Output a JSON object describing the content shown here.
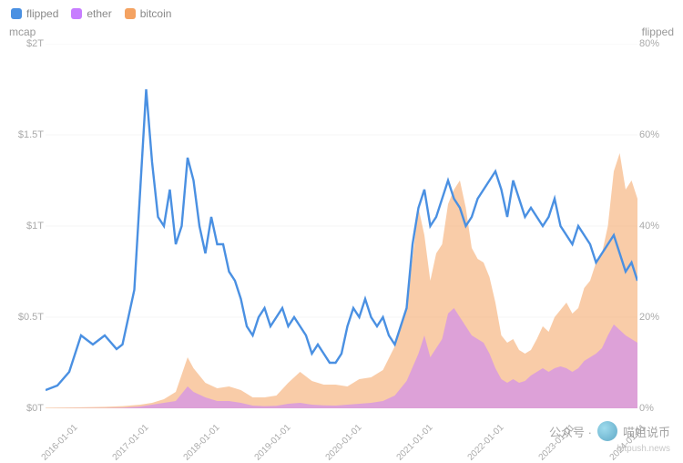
{
  "legend": {
    "items": [
      {
        "key": "flipped",
        "label": "flipped",
        "color": "#4a90e2"
      },
      {
        "key": "ether",
        "label": "ether",
        "color": "#c77dff"
      },
      {
        "key": "bitcoin",
        "label": "bitcoin",
        "color": "#f4a261"
      }
    ]
  },
  "chart": {
    "type": "dual-axis-line-area",
    "background_color": "#ffffff",
    "grid_color": "#eeeeee",
    "text_color": "#999999",
    "fontsize_ticks": 11,
    "fontsize_axis_title": 12,
    "y_left": {
      "title": "mcap",
      "lim": [
        0,
        2
      ],
      "ticks": [
        {
          "v": 0,
          "label": "$0T"
        },
        {
          "v": 0.5,
          "label": "$0.5T"
        },
        {
          "v": 1,
          "label": "$1T"
        },
        {
          "v": 1.5,
          "label": "$1.5T"
        },
        {
          "v": 2,
          "label": "$2T"
        }
      ]
    },
    "y_right": {
      "title": "flipped",
      "lim": [
        0,
        80
      ],
      "ticks": [
        {
          "v": 0,
          "label": "0%"
        },
        {
          "v": 20,
          "label": "20%"
        },
        {
          "v": 40,
          "label": "40%"
        },
        {
          "v": 60,
          "label": "60%"
        },
        {
          "v": 80,
          "label": "80%"
        }
      ]
    },
    "x": {
      "lim": [
        0,
        100
      ],
      "ticks": [
        {
          "v": 1,
          "label": "2016-01-01"
        },
        {
          "v": 13,
          "label": "2017-01-01"
        },
        {
          "v": 25,
          "label": "2018-01-01"
        },
        {
          "v": 37,
          "label": "2019-01-01"
        },
        {
          "v": 49,
          "label": "2020-01-01"
        },
        {
          "v": 61,
          "label": "2021-01-01"
        },
        {
          "v": 73,
          "label": "2022-01-01"
        },
        {
          "v": 85,
          "label": "2023-01-01"
        },
        {
          "v": 97,
          "label": "2024-01-01"
        }
      ]
    },
    "series": {
      "bitcoin_mcap": {
        "axis": "left",
        "color": "#f4a261",
        "fill_opacity": 0.55,
        "points": [
          [
            0,
            0.003
          ],
          [
            5,
            0.005
          ],
          [
            10,
            0.008
          ],
          [
            13,
            0.012
          ],
          [
            16,
            0.02
          ],
          [
            18,
            0.03
          ],
          [
            20,
            0.05
          ],
          [
            22,
            0.09
          ],
          [
            24,
            0.28
          ],
          [
            25,
            0.22
          ],
          [
            27,
            0.14
          ],
          [
            29,
            0.11
          ],
          [
            31,
            0.12
          ],
          [
            33,
            0.1
          ],
          [
            35,
            0.06
          ],
          [
            37,
            0.06
          ],
          [
            39,
            0.07
          ],
          [
            41,
            0.14
          ],
          [
            43,
            0.2
          ],
          [
            45,
            0.15
          ],
          [
            47,
            0.13
          ],
          [
            49,
            0.13
          ],
          [
            51,
            0.12
          ],
          [
            53,
            0.16
          ],
          [
            55,
            0.17
          ],
          [
            57,
            0.21
          ],
          [
            59,
            0.34
          ],
          [
            61,
            0.55
          ],
          [
            63,
            1.1
          ],
          [
            64,
            0.95
          ],
          [
            65,
            0.7
          ],
          [
            66,
            0.85
          ],
          [
            67,
            0.9
          ],
          [
            68,
            1.12
          ],
          [
            69,
            1.2
          ],
          [
            70,
            1.25
          ],
          [
            71,
            1.1
          ],
          [
            72,
            0.88
          ],
          [
            73,
            0.82
          ],
          [
            74,
            0.8
          ],
          [
            75,
            0.72
          ],
          [
            76,
            0.58
          ],
          [
            77,
            0.4
          ],
          [
            78,
            0.36
          ],
          [
            79,
            0.38
          ],
          [
            80,
            0.32
          ],
          [
            81,
            0.3
          ],
          [
            82,
            0.32
          ],
          [
            83,
            0.38
          ],
          [
            84,
            0.45
          ],
          [
            85,
            0.42
          ],
          [
            86,
            0.5
          ],
          [
            87,
            0.54
          ],
          [
            88,
            0.58
          ],
          [
            89,
            0.52
          ],
          [
            90,
            0.55
          ],
          [
            91,
            0.66
          ],
          [
            92,
            0.7
          ],
          [
            93,
            0.8
          ],
          [
            94,
            0.85
          ],
          [
            95,
            1.0
          ],
          [
            96,
            1.3
          ],
          [
            97,
            1.4
          ],
          [
            98,
            1.2
          ],
          [
            99,
            1.25
          ],
          [
            100,
            1.15
          ]
        ]
      },
      "ether_mcap": {
        "axis": "left",
        "color": "#c77dff",
        "fill_opacity": 0.55,
        "points": [
          [
            0,
            0.0
          ],
          [
            10,
            0.001
          ],
          [
            13,
            0.003
          ],
          [
            16,
            0.01
          ],
          [
            18,
            0.02
          ],
          [
            20,
            0.03
          ],
          [
            22,
            0.04
          ],
          [
            24,
            0.12
          ],
          [
            25,
            0.09
          ],
          [
            27,
            0.06
          ],
          [
            29,
            0.04
          ],
          [
            31,
            0.04
          ],
          [
            33,
            0.03
          ],
          [
            35,
            0.015
          ],
          [
            37,
            0.012
          ],
          [
            39,
            0.014
          ],
          [
            41,
            0.025
          ],
          [
            43,
            0.03
          ],
          [
            45,
            0.02
          ],
          [
            47,
            0.016
          ],
          [
            49,
            0.015
          ],
          [
            51,
            0.02
          ],
          [
            53,
            0.025
          ],
          [
            55,
            0.03
          ],
          [
            57,
            0.04
          ],
          [
            59,
            0.07
          ],
          [
            61,
            0.15
          ],
          [
            63,
            0.3
          ],
          [
            64,
            0.4
          ],
          [
            65,
            0.28
          ],
          [
            66,
            0.33
          ],
          [
            67,
            0.38
          ],
          [
            68,
            0.52
          ],
          [
            69,
            0.55
          ],
          [
            70,
            0.5
          ],
          [
            71,
            0.45
          ],
          [
            72,
            0.4
          ],
          [
            73,
            0.38
          ],
          [
            74,
            0.36
          ],
          [
            75,
            0.3
          ],
          [
            76,
            0.22
          ],
          [
            77,
            0.16
          ],
          [
            78,
            0.14
          ],
          [
            79,
            0.16
          ],
          [
            80,
            0.14
          ],
          [
            81,
            0.15
          ],
          [
            82,
            0.18
          ],
          [
            83,
            0.2
          ],
          [
            84,
            0.22
          ],
          [
            85,
            0.2
          ],
          [
            86,
            0.22
          ],
          [
            87,
            0.23
          ],
          [
            88,
            0.22
          ],
          [
            89,
            0.2
          ],
          [
            90,
            0.22
          ],
          [
            91,
            0.26
          ],
          [
            92,
            0.28
          ],
          [
            93,
            0.3
          ],
          [
            94,
            0.33
          ],
          [
            95,
            0.4
          ],
          [
            96,
            0.46
          ],
          [
            97,
            0.43
          ],
          [
            98,
            0.4
          ],
          [
            99,
            0.38
          ],
          [
            100,
            0.36
          ]
        ]
      },
      "flipped_pct": {
        "axis": "right",
        "color": "#4a90e2",
        "line_width": 2.4,
        "points": [
          [
            0,
            4
          ],
          [
            2,
            5
          ],
          [
            4,
            8
          ],
          [
            6,
            16
          ],
          [
            8,
            14
          ],
          [
            10,
            16
          ],
          [
            12,
            13
          ],
          [
            13,
            14
          ],
          [
            14,
            20
          ],
          [
            15,
            26
          ],
          [
            16,
            48
          ],
          [
            17,
            70
          ],
          [
            18,
            54
          ],
          [
            19,
            42
          ],
          [
            20,
            40
          ],
          [
            21,
            48
          ],
          [
            22,
            36
          ],
          [
            23,
            40
          ],
          [
            24,
            55
          ],
          [
            25,
            50
          ],
          [
            26,
            40
          ],
          [
            27,
            34
          ],
          [
            28,
            42
          ],
          [
            29,
            36
          ],
          [
            30,
            36
          ],
          [
            31,
            30
          ],
          [
            32,
            28
          ],
          [
            33,
            24
          ],
          [
            34,
            18
          ],
          [
            35,
            16
          ],
          [
            36,
            20
          ],
          [
            37,
            22
          ],
          [
            38,
            18
          ],
          [
            39,
            20
          ],
          [
            40,
            22
          ],
          [
            41,
            18
          ],
          [
            42,
            20
          ],
          [
            43,
            18
          ],
          [
            44,
            16
          ],
          [
            45,
            12
          ],
          [
            46,
            14
          ],
          [
            47,
            12
          ],
          [
            48,
            10
          ],
          [
            49,
            10
          ],
          [
            50,
            12
          ],
          [
            51,
            18
          ],
          [
            52,
            22
          ],
          [
            53,
            20
          ],
          [
            54,
            24
          ],
          [
            55,
            20
          ],
          [
            56,
            18
          ],
          [
            57,
            20
          ],
          [
            58,
            16
          ],
          [
            59,
            14
          ],
          [
            60,
            18
          ],
          [
            61,
            22
          ],
          [
            62,
            36
          ],
          [
            63,
            44
          ],
          [
            64,
            48
          ],
          [
            65,
            40
          ],
          [
            66,
            42
          ],
          [
            67,
            46
          ],
          [
            68,
            50
          ],
          [
            69,
            46
          ],
          [
            70,
            44
          ],
          [
            71,
            40
          ],
          [
            72,
            42
          ],
          [
            73,
            46
          ],
          [
            74,
            48
          ],
          [
            75,
            50
          ],
          [
            76,
            52
          ],
          [
            77,
            48
          ],
          [
            78,
            42
          ],
          [
            79,
            50
          ],
          [
            80,
            46
          ],
          [
            81,
            42
          ],
          [
            82,
            44
          ],
          [
            83,
            42
          ],
          [
            84,
            40
          ],
          [
            85,
            42
          ],
          [
            86,
            46
          ],
          [
            87,
            40
          ],
          [
            88,
            38
          ],
          [
            89,
            36
          ],
          [
            90,
            40
          ],
          [
            91,
            38
          ],
          [
            92,
            36
          ],
          [
            93,
            32
          ],
          [
            94,
            34
          ],
          [
            95,
            36
          ],
          [
            96,
            38
          ],
          [
            97,
            34
          ],
          [
            98,
            30
          ],
          [
            99,
            32
          ],
          [
            100,
            28
          ]
        ]
      }
    }
  },
  "watermark": {
    "prefix": "公众号 · ",
    "name": "喵姐说币",
    "sub": "bitpush.news"
  }
}
